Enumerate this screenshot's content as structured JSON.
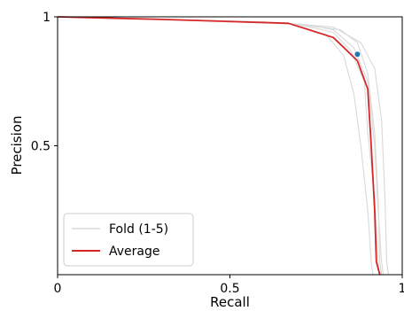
{
  "chart_data": {
    "type": "line",
    "xlabel": "Recall",
    "ylabel": "Precision",
    "xlim": [
      0,
      1
    ],
    "ylim": [
      0,
      1
    ],
    "x_ticks": [
      {
        "value": 0,
        "label": "0"
      },
      {
        "value": 0.5,
        "label": "0.5"
      },
      {
        "value": 1,
        "label": "1"
      }
    ],
    "y_ticks": [
      {
        "value": 0.5,
        "label": "0.5"
      },
      {
        "value": 1,
        "label": "1"
      }
    ],
    "grid": false,
    "legend_position": "bottom-left",
    "series": [
      {
        "name": "Fold (1-5)",
        "color": "#d9d9d9",
        "x": [
          0,
          0.3,
          0.6,
          0.72,
          0.8,
          0.86,
          0.9,
          0.92,
          0.93,
          0.94,
          0.945
        ],
        "y": [
          1,
          0.99,
          0.98,
          0.97,
          0.95,
          0.88,
          0.75,
          0.5,
          0.25,
          0.05,
          0
        ]
      },
      {
        "name": "",
        "color": "#d9d9d9",
        "x": [
          0,
          0.3,
          0.6,
          0.69,
          0.78,
          0.83,
          0.86,
          0.88,
          0.9,
          0.91,
          0.915
        ],
        "y": [
          1,
          0.99,
          0.98,
          0.97,
          0.93,
          0.85,
          0.7,
          0.5,
          0.25,
          0.05,
          0
        ]
      },
      {
        "name": "",
        "color": "#d9d9d9",
        "x": [
          0,
          0.3,
          0.6,
          0.7,
          0.8,
          0.85,
          0.89,
          0.9,
          0.92,
          0.93,
          0.935
        ],
        "y": [
          1,
          0.99,
          0.98,
          0.97,
          0.94,
          0.87,
          0.75,
          0.55,
          0.3,
          0.05,
          0
        ]
      },
      {
        "name": "",
        "color": "#d9d9d9",
        "x": [
          0,
          0.3,
          0.6,
          0.7,
          0.82,
          0.87,
          0.9,
          0.92,
          0.93,
          0.935,
          0.94
        ],
        "y": [
          1,
          0.99,
          0.98,
          0.97,
          0.95,
          0.9,
          0.78,
          0.55,
          0.3,
          0.05,
          0
        ]
      },
      {
        "name": "",
        "color": "#d9d9d9",
        "x": [
          0,
          0.3,
          0.6,
          0.71,
          0.8,
          0.88,
          0.92,
          0.94,
          0.95,
          0.955,
          0.96
        ],
        "y": [
          1,
          0.99,
          0.98,
          0.97,
          0.96,
          0.9,
          0.8,
          0.6,
          0.3,
          0.05,
          0
        ]
      },
      {
        "name": "Average",
        "color": "#d62728",
        "x": [
          0,
          0.3,
          0.67,
          0.8,
          0.87,
          0.9,
          0.91,
          0.92,
          0.925,
          0.935
        ],
        "y": [
          1,
          0.99,
          0.975,
          0.92,
          0.83,
          0.72,
          0.5,
          0.25,
          0.05,
          0
        ]
      }
    ],
    "marker": {
      "x": 0.87,
      "y": 0.855,
      "color": "#1f77b4"
    }
  }
}
